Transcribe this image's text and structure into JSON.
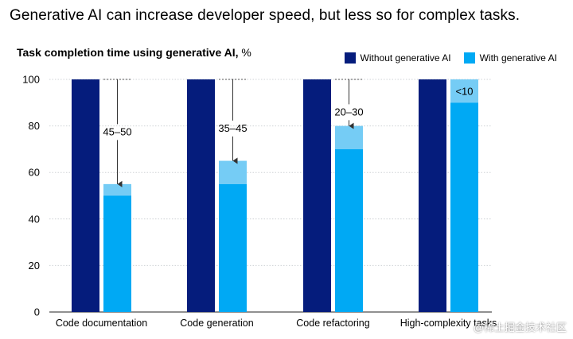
{
  "title": "Generative AI can increase developer speed, but less so for complex tasks.",
  "subtitle": "Task completion time using generative AI,",
  "subtitle_unit": "%",
  "legend": {
    "without": "Without generative AI",
    "with": "With generative AI"
  },
  "watermark": "@稀土掘金技术社区",
  "colors": {
    "without": "#051c7c",
    "with": "#00a9f4",
    "range": "#75ccf5",
    "grid": "#cfd3d6",
    "text": "#000000"
  },
  "chart_data": {
    "type": "bar",
    "ylim": [
      0,
      100
    ],
    "yticks": [
      "0",
      "20",
      "40",
      "60",
      "80",
      "100"
    ],
    "xlabel": "",
    "ylabel": "",
    "categories": [
      "Code documentation",
      "Code generation",
      "Code refactoring",
      "High-complexity tasks"
    ],
    "series": [
      {
        "name": "Without generative AI",
        "values": [
          100,
          100,
          100,
          100
        ]
      },
      {
        "name": "With generative AI",
        "values": [
          50,
          55,
          70,
          90
        ],
        "range_top": [
          55,
          65,
          80,
          100
        ]
      }
    ],
    "annotations": [
      "45–50",
      "35–45",
      "20–30",
      "<10"
    ],
    "grid": true,
    "legend_position": "top-right"
  }
}
